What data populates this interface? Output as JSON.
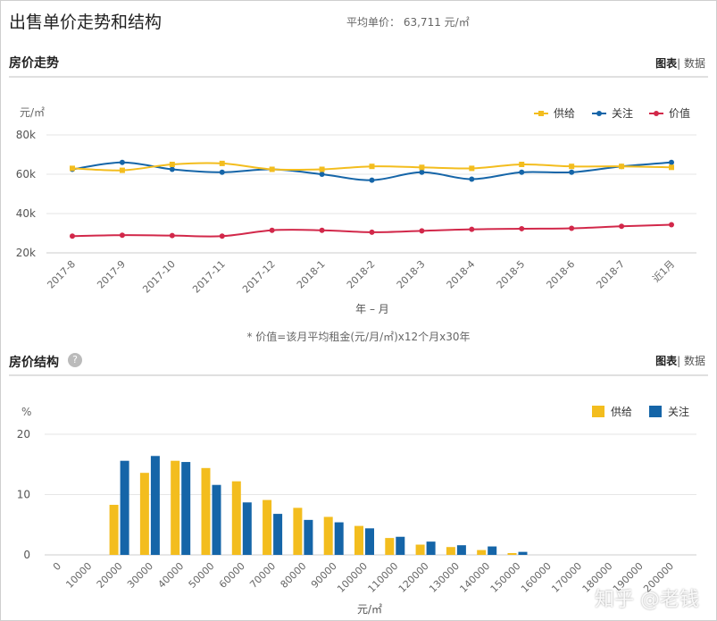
{
  "header": {
    "title": "出售单价走势和结构",
    "avg_label": "平均单价：",
    "avg_value": "63,711 元/㎡"
  },
  "trend_section": {
    "title": "房价走势",
    "switch_chart": "图表",
    "switch_sep": "|",
    "switch_data": "数据",
    "note": "* 价值=该月平均租金(元/月/㎡)x12个月x30年"
  },
  "structure_section": {
    "title": "房价结构",
    "help_icon": "?",
    "switch_chart": "图表",
    "switch_sep": "|",
    "switch_data": "数据"
  },
  "watermark": "知乎 @老钱",
  "colors": {
    "supply": "#f3bd1e",
    "attention": "#1565a8",
    "value": "#d2284a",
    "grid": "#e6e6e6"
  },
  "chart_data": [
    {
      "type": "line",
      "ylabel": "元/㎡",
      "xlabel": "年 – 月",
      "ylim": [
        20000,
        80000
      ],
      "yticks": [
        "20k",
        "40k",
        "60k",
        "80k"
      ],
      "yticks_values": [
        20000,
        40000,
        60000,
        80000
      ],
      "categories": [
        "2017-8",
        "2017-9",
        "2017-10",
        "2017-11",
        "2017-12",
        "2018-1",
        "2018-2",
        "2018-3",
        "2018-4",
        "2018-5",
        "2018-6",
        "2018-7",
        "近1月"
      ],
      "legend_position": "top-right",
      "grid": true,
      "series": [
        {
          "name": "供给",
          "color": "#f3bd1e",
          "marker": "square",
          "values": [
            63000,
            62000,
            65000,
            65500,
            62500,
            62500,
            64000,
            63500,
            63000,
            65000,
            64000,
            64000,
            63500
          ]
        },
        {
          "name": "关注",
          "color": "#1565a8",
          "marker": "circle",
          "values": [
            62500,
            66000,
            62500,
            61000,
            62500,
            60000,
            57000,
            61000,
            57500,
            61000,
            61000,
            64000,
            66000
          ]
        },
        {
          "name": "价值",
          "color": "#d2284a",
          "marker": "circle",
          "values": [
            28500,
            29000,
            28800,
            28500,
            31500,
            31500,
            30500,
            31200,
            32000,
            32300,
            32500,
            33500,
            34300
          ]
        }
      ]
    },
    {
      "type": "bar",
      "ylabel": "%",
      "xlabel": "元/㎡",
      "ylim": [
        0,
        20
      ],
      "yticks": [
        "0",
        "10",
        "20"
      ],
      "yticks_values": [
        0,
        10,
        20
      ],
      "categories": [
        "0",
        "10000",
        "20000",
        "30000",
        "40000",
        "50000",
        "60000",
        "70000",
        "80000",
        "90000",
        "100000",
        "110000",
        "120000",
        "130000",
        "140000",
        "150000",
        "160000",
        "170000",
        "180000",
        "190000",
        "200000"
      ],
      "legend_position": "top-right",
      "grid": true,
      "series": [
        {
          "name": "供给",
          "color": "#f3bd1e",
          "values": [
            0,
            0,
            8.3,
            13.6,
            15.6,
            14.4,
            12.2,
            9.1,
            7.8,
            6.3,
            4.8,
            2.8,
            1.7,
            1.3,
            0.8,
            0.3,
            0,
            0,
            0,
            0,
            0
          ]
        },
        {
          "name": "关注",
          "color": "#1565a8",
          "values": [
            0,
            0,
            15.6,
            16.4,
            15.4,
            11.6,
            8.7,
            6.8,
            5.8,
            5.4,
            4.4,
            3.0,
            2.2,
            1.6,
            1.4,
            0.5,
            0,
            0,
            0,
            0,
            0
          ]
        }
      ]
    }
  ]
}
